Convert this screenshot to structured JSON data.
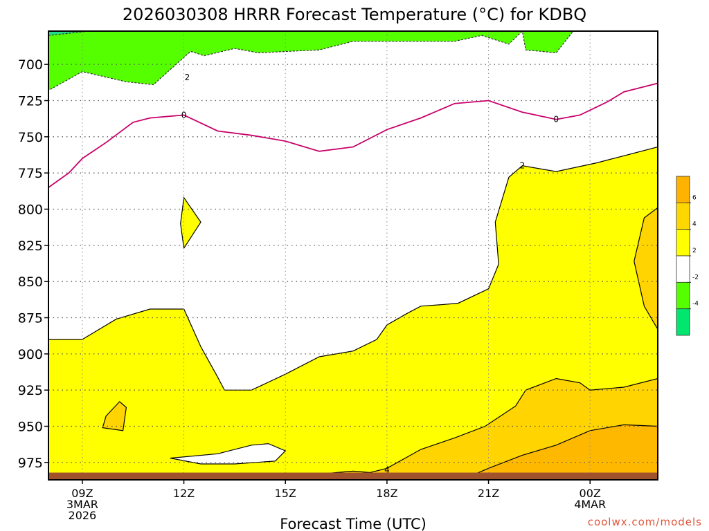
{
  "chart_data": {
    "type": "heatmap",
    "title": "2026030308 HRRR Forecast Temperature (°C) for KDBQ",
    "xlabel": "Forecast Time (UTC)",
    "ylabel": "",
    "credit": "coolwx.com/models",
    "x_ticks": [
      {
        "label": "09Z",
        "sub1": "3MAR",
        "sub2": "2026",
        "hour": 0
      },
      {
        "label": "12Z",
        "sub1": "",
        "sub2": "",
        "hour": 3
      },
      {
        "label": "15Z",
        "sub1": "",
        "sub2": "",
        "hour": 6
      },
      {
        "label": "18Z",
        "sub1": "",
        "sub2": "",
        "hour": 9
      },
      {
        "label": "21Z",
        "sub1": "",
        "sub2": "",
        "hour": 12
      },
      {
        "label": "00Z",
        "sub1": "4MAR",
        "sub2": "",
        "hour": 15
      }
    ],
    "xlim_hours": [
      -1,
      17
    ],
    "y_ticks": [
      700,
      725,
      750,
      775,
      800,
      825,
      850,
      875,
      900,
      925,
      950,
      975
    ],
    "ylim_hPa": [
      677,
      987
    ],
    "ground_hPa": 982,
    "colorbar": {
      "tick_labels": [
        "6",
        "4",
        "2",
        "-2",
        "-4"
      ],
      "bins": [
        {
          "min": 6,
          "max": 8,
          "color": "#FFB300"
        },
        {
          "min": 4,
          "max": 6,
          "color": "#FFD700"
        },
        {
          "min": 2,
          "max": 4,
          "color": "#FFFF00"
        },
        {
          "min": -2,
          "max": 2,
          "color": "#FFFFFF"
        },
        {
          "min": -4,
          "max": -2,
          "color": "#55FF00"
        },
        {
          "min": -6,
          "max": -4,
          "color": "#00E66E"
        }
      ]
    },
    "colors": {
      "green": "#55FF00",
      "cold": "#22DD88",
      "yellow": "#FFFF00",
      "gold": "#FFD400",
      "orange": "#FFB800",
      "zero_line": "#C8006A",
      "ground": "#A0522D"
    },
    "regions": [
      {
        "name": "below -2",
        "color": "green",
        "points": [
          [
            -1,
            677
          ],
          [
            13,
            677
          ],
          [
            12.6,
            686
          ],
          [
            11.8,
            680
          ],
          [
            11,
            684
          ],
          [
            8,
            684
          ],
          [
            7,
            690
          ],
          [
            5.2,
            692
          ],
          [
            4.5,
            689
          ],
          [
            3.6,
            694
          ],
          [
            3.2,
            691
          ],
          [
            2.1,
            714
          ],
          [
            1.3,
            712
          ],
          [
            0,
            705
          ],
          [
            -1,
            718
          ]
        ]
      },
      {
        "name": "right-top below -2",
        "color": "green",
        "points": [
          [
            13,
            677
          ],
          [
            14.5,
            677
          ],
          [
            14,
            692
          ],
          [
            13.1,
            690
          ]
        ]
      },
      {
        "name": "below -4",
        "color": "cold",
        "points": [
          [
            -1,
            677
          ],
          [
            0.2,
            677
          ],
          [
            -1,
            680
          ]
        ]
      },
      {
        "name": "2 to 4",
        "color": "yellow",
        "points": [
          [
            -1,
            987
          ],
          [
            -1,
            890
          ],
          [
            0,
            890
          ],
          [
            1,
            876
          ],
          [
            2,
            869
          ],
          [
            3,
            869
          ],
          [
            3.5,
            895
          ],
          [
            4,
            916
          ],
          [
            4.2,
            925
          ],
          [
            5,
            925
          ],
          [
            6,
            914
          ],
          [
            7,
            902
          ],
          [
            8,
            898
          ],
          [
            8.7,
            890
          ],
          [
            9,
            880
          ],
          [
            9.6,
            872
          ],
          [
            10,
            867
          ],
          [
            10.6,
            866
          ],
          [
            11.1,
            865
          ],
          [
            12,
            855
          ],
          [
            12.3,
            838
          ],
          [
            12.2,
            809
          ],
          [
            12.6,
            778
          ],
          [
            13,
            770
          ],
          [
            14,
            774
          ],
          [
            15.2,
            768
          ],
          [
            17,
            757
          ],
          [
            17,
            987
          ]
        ]
      },
      {
        "name": "2 to 4 isolated",
        "color": "yellow",
        "points": [
          [
            3,
            792
          ],
          [
            3.5,
            809
          ],
          [
            3,
            827
          ],
          [
            2.9,
            810
          ]
        ]
      },
      {
        "name": "4 to 6",
        "color": "gold",
        "points": [
          [
            5.9,
            987
          ],
          [
            7,
            983
          ],
          [
            8,
            981
          ],
          [
            8.5,
            982
          ],
          [
            9,
            979
          ],
          [
            10,
            966
          ],
          [
            11,
            958
          ],
          [
            11.9,
            950
          ],
          [
            12.8,
            936
          ],
          [
            13.1,
            925
          ],
          [
            14,
            917
          ],
          [
            14.7,
            920
          ],
          [
            15,
            925
          ],
          [
            16,
            923
          ],
          [
            17,
            917
          ],
          [
            17,
            987
          ]
        ]
      },
      {
        "name": "4 to 6 right",
        "color": "gold",
        "points": [
          [
            17,
            799
          ],
          [
            16.6,
            806
          ],
          [
            16.3,
            836
          ],
          [
            16.6,
            867
          ],
          [
            17,
            883
          ]
        ]
      },
      {
        "name": "4 to 6 left",
        "color": "gold",
        "points": [
          [
            0.7,
            943
          ],
          [
            1.1,
            933
          ],
          [
            1.3,
            937
          ],
          [
            1.2,
            953
          ],
          [
            0.6,
            951
          ]
        ]
      },
      {
        "name": "6 to 8",
        "color": "orange",
        "points": [
          [
            11.2,
            987
          ],
          [
            12,
            979
          ],
          [
            13,
            970
          ],
          [
            14,
            963
          ],
          [
            15,
            953
          ],
          [
            16,
            949
          ],
          [
            17,
            950
          ],
          [
            17,
            987
          ]
        ]
      },
      {
        "name": "white pocket",
        "color": "white",
        "points": [
          [
            2.6,
            972
          ],
          [
            4,
            969
          ],
          [
            5,
            963
          ],
          [
            5.5,
            962
          ],
          [
            6,
            967
          ],
          [
            5.7,
            974
          ],
          [
            4.5,
            976
          ],
          [
            3.5,
            976
          ]
        ]
      }
    ],
    "zero_line": [
      [
        -1,
        785
      ],
      [
        -0.4,
        775
      ],
      [
        0,
        765
      ],
      [
        0.7,
        754
      ],
      [
        1.5,
        740
      ],
      [
        2,
        737
      ],
      [
        3,
        735
      ],
      [
        4,
        746
      ],
      [
        5,
        749
      ],
      [
        6,
        753
      ],
      [
        7,
        760
      ],
      [
        8,
        757
      ],
      [
        9,
        745
      ],
      [
        10,
        737
      ],
      [
        11,
        727
      ],
      [
        12,
        725
      ],
      [
        13,
        733
      ],
      [
        14,
        738
      ],
      [
        14.7,
        735
      ],
      [
        15.5,
        726
      ],
      [
        16,
        719
      ],
      [
        17,
        713
      ]
    ],
    "contour_labels": [
      {
        "text": "2",
        "hour": 3.1,
        "hPa": 709
      },
      {
        "text": "0",
        "hour": 3,
        "hPa": 735
      },
      {
        "text": "0",
        "hour": 14,
        "hPa": 738
      },
      {
        "text": "2",
        "hour": 13,
        "hPa": 770
      },
      {
        "text": "4",
        "hour": 9,
        "hPa": 980
      }
    ]
  }
}
